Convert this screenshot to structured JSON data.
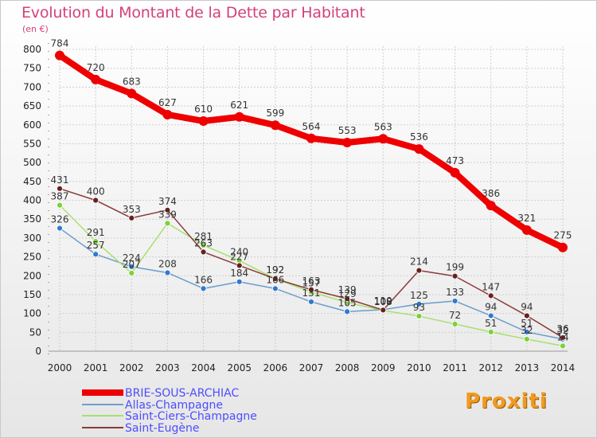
{
  "title": "Evolution du Montant de la Dette par Habitant",
  "unit": "(en €)",
  "logo_text": "Proxiti",
  "colors": {
    "title": "#d4417a",
    "legend_text": "#4d4dff",
    "grid": "#cfcfcf",
    "axis_text": "#222222"
  },
  "chart_data": {
    "type": "line",
    "title": "Evolution du Montant de la Dette par Habitant",
    "ylabel": "(en €)",
    "x": [
      2000,
      2001,
      2002,
      2003,
      2004,
      2005,
      2006,
      2007,
      2008,
      2009,
      2010,
      2011,
      2012,
      2013,
      2014
    ],
    "ylim": [
      0,
      800
    ],
    "yticks": [
      0,
      50,
      100,
      150,
      200,
      250,
      300,
      350,
      400,
      450,
      500,
      550,
      600,
      650,
      700,
      750,
      800
    ],
    "grid": true,
    "legend_position": "bottom-left",
    "series": [
      {
        "name": "BRIE-SOUS-ARCHIAC",
        "color": "#ee0000",
        "marker": "#ee0000",
        "values": [
          784,
          720,
          683,
          627,
          610,
          621,
          599,
          564,
          553,
          563,
          536,
          473,
          386,
          321,
          275
        ]
      },
      {
        "name": "Allas-Champagne",
        "color": "#6a9ecb",
        "marker": "#2f7ad0",
        "values": [
          326,
          257,
          224,
          208,
          166,
          184,
          166,
          131,
          105,
          110,
          125,
          133,
          94,
          51,
          32
        ]
      },
      {
        "name": "Saint-Ciers-Champagne",
        "color": "#a8e070",
        "marker": "#7cd13a",
        "values": [
          387,
          291,
          207,
          339,
          281,
          240,
          192,
          157,
          129,
          108,
          93,
          72,
          51,
          32,
          14
        ]
      },
      {
        "name": "Saint-Eugène",
        "color": "#8b3a3a",
        "marker": "#6a1f1f",
        "values": [
          431,
          400,
          353,
          374,
          263,
          227,
          192,
          163,
          139,
          109,
          214,
          199,
          147,
          94,
          36
        ]
      }
    ]
  }
}
